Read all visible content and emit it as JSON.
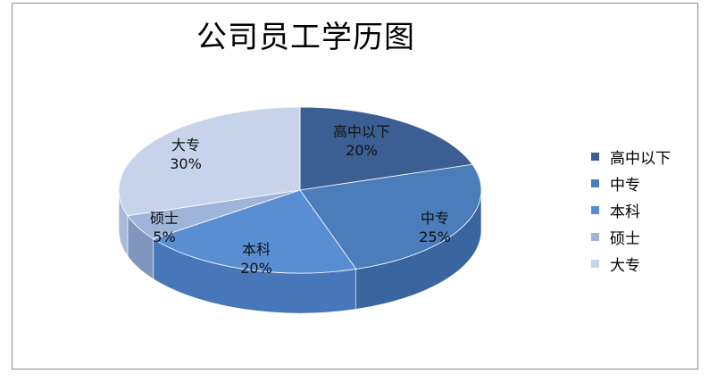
{
  "chart_data": {
    "type": "pie",
    "title": "公司员工学历图",
    "categories": [
      "高中以下",
      "中专",
      "本科",
      "硕士",
      "大专"
    ],
    "values": [
      20,
      25,
      20,
      5,
      30
    ],
    "data_labels": [
      "20%",
      "25%",
      "20%",
      "5%",
      "30%"
    ],
    "colors": [
      "#3b5f93",
      "#4a7dba",
      "#5a8ed2",
      "#9eb4d8",
      "#c6d3ea"
    ],
    "side_colors": [
      "#2c4a78",
      "#3a66a0",
      "#4777b8",
      "#7f97bf",
      "#a9b9d6"
    ],
    "legend_position": "right",
    "style": "3d"
  }
}
